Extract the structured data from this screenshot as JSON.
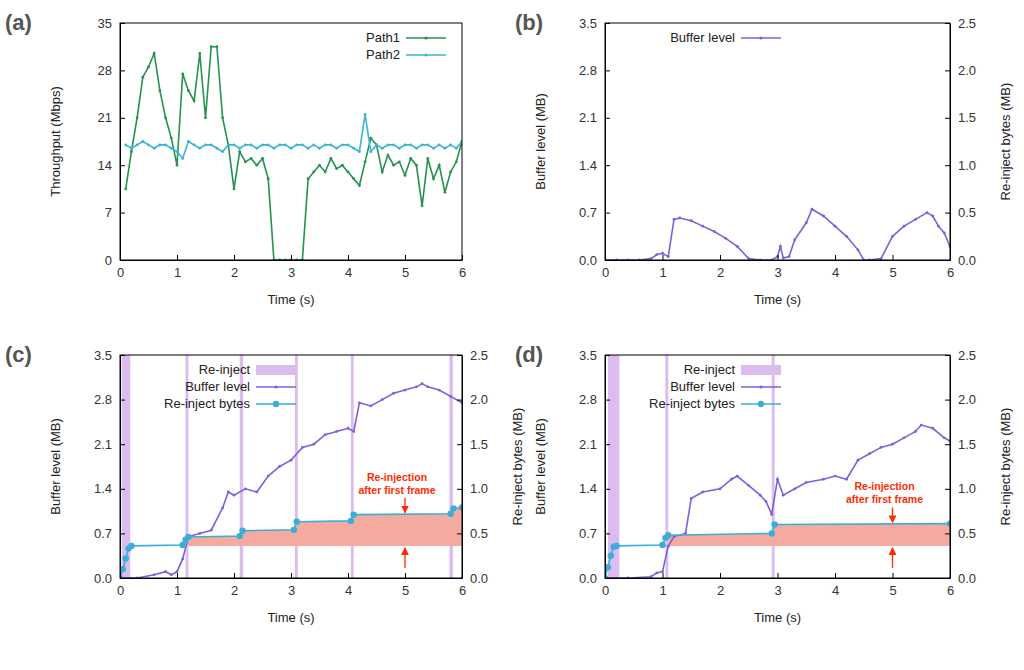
{
  "chart_data": [
    {
      "type": "line",
      "title": "(a)",
      "xlabel": "Time (s)",
      "ylabel": "Throughput (Mbps)",
      "xlim": [
        0,
        6
      ],
      "xticks": [
        0,
        1,
        2,
        3,
        4,
        5,
        6
      ],
      "ylim": [
        0,
        35
      ],
      "yticks": [
        0,
        7,
        14,
        21,
        28,
        35
      ],
      "legend": "upper right",
      "x": [
        0.1,
        0.2,
        0.3,
        0.4,
        0.5,
        0.6,
        0.7,
        0.8,
        0.9,
        1.0,
        1.1,
        1.2,
        1.3,
        1.4,
        1.5,
        1.6,
        1.7,
        1.8,
        1.9,
        2.0,
        2.1,
        2.2,
        2.3,
        2.4,
        2.5,
        2.6,
        2.7,
        2.8,
        2.9,
        3.0,
        3.1,
        3.2,
        3.3,
        3.4,
        3.5,
        3.6,
        3.7,
        3.8,
        3.9,
        4.0,
        4.1,
        4.2,
        4.3,
        4.4,
        4.5,
        4.6,
        4.7,
        4.8,
        4.9,
        5.0,
        5.1,
        5.2,
        5.3,
        5.4,
        5.5,
        5.6,
        5.7,
        5.8,
        5.9,
        6.0
      ],
      "series": [
        {
          "name": "Path1",
          "color": "#25924e",
          "marker": "point",
          "values": [
            10.5,
            16,
            21,
            27,
            28.5,
            30.5,
            25,
            21,
            18,
            14,
            27.5,
            25,
            23.5,
            30.5,
            21,
            31.5,
            31.5,
            21,
            17,
            10.5,
            16,
            14.5,
            15,
            14,
            15,
            12,
            0,
            0,
            0,
            0,
            0,
            0,
            12,
            13,
            14,
            13,
            15,
            13.5,
            14,
            13,
            12,
            11,
            14.5,
            18,
            17,
            13,
            15.5,
            14,
            14.5,
            12.5,
            15,
            14,
            8,
            15,
            12,
            14,
            10,
            13,
            14.5,
            17.5
          ]
        },
        {
          "name": "Path2",
          "color": "#3db3d6",
          "marker": "point",
          "values": [
            17,
            16.5,
            17,
            17.5,
            17,
            16.5,
            17,
            17,
            16.5,
            16,
            15,
            17.5,
            17,
            16.5,
            17,
            17,
            16.5,
            16,
            17,
            17,
            16.5,
            17,
            17,
            16.5,
            17,
            17,
            16.5,
            17,
            17,
            16.5,
            17,
            17,
            16.5,
            17,
            16.5,
            17,
            17,
            16.5,
            17,
            17,
            16.5,
            16,
            21.5,
            16,
            17,
            16.5,
            17,
            17,
            16.5,
            17,
            17,
            16.5,
            17,
            17,
            16.5,
            17,
            16.5,
            17,
            16.5,
            17.5
          ]
        }
      ]
    },
    {
      "type": "line",
      "title": "(b)",
      "xlabel": "Time (s)",
      "ylabel": "Buffer level (MB)",
      "y2label": "Re-inject bytes (MB)",
      "xlim": [
        0,
        6
      ],
      "xticks": [
        0,
        1,
        2,
        3,
        4,
        5,
        6
      ],
      "ylim": [
        0,
        3.5
      ],
      "yticks": [
        {
          "value": 0,
          "label": "0.0"
        },
        0.7,
        1.4,
        2.1,
        2.8,
        3.5
      ],
      "y2lim": [
        0,
        2.5
      ],
      "y2ticks": [
        {
          "value": 0,
          "label": "0.0"
        },
        0.5,
        {
          "value": 1,
          "label": "1.0"
        },
        1.5,
        {
          "value": 2,
          "label": "2.0"
        },
        2.5
      ],
      "legend": "upper left",
      "series": [
        {
          "name": "Buffer level",
          "color": "#7b62dc",
          "marker": "point",
          "x": [
            0,
            0.2,
            0.4,
            0.6,
            0.8,
            0.9,
            1.0,
            1.1,
            1.2,
            1.3,
            1.5,
            1.7,
            1.9,
            2.1,
            2.3,
            2.5,
            2.7,
            2.9,
            3.0,
            3.05,
            3.1,
            3.2,
            3.3,
            3.5,
            3.6,
            3.8,
            4.0,
            4.2,
            4.4,
            4.5,
            4.6,
            4.8,
            5.0,
            5.2,
            5.4,
            5.6,
            5.7,
            5.8,
            5.9,
            6.0
          ],
          "values": [
            0,
            0,
            0,
            0,
            0.02,
            0.08,
            0.1,
            0.05,
            0.6,
            0.62,
            0.58,
            0.5,
            0.42,
            0.32,
            0.2,
            0.02,
            0,
            0,
            0.05,
            0.2,
            0.03,
            0.05,
            0.3,
            0.55,
            0.75,
            0.65,
            0.5,
            0.35,
            0.15,
            0,
            0,
            0.02,
            0.35,
            0.5,
            0.6,
            0.7,
            0.65,
            0.5,
            0.4,
            0.2
          ]
        }
      ]
    },
    {
      "type": "line",
      "title": "(c)",
      "xlabel": "Time (s)",
      "ylabel": "Buffer level (MB)",
      "y2label": "Re-inject bytes (MB)",
      "xlim": [
        0,
        6
      ],
      "xticks": [
        0,
        1,
        2,
        3,
        4,
        5,
        6
      ],
      "ylim": [
        0,
        3.5
      ],
      "yticks": [
        {
          "value": 0,
          "label": "0.0"
        },
        0.7,
        1.4,
        2.1,
        2.8,
        3.5
      ],
      "y2lim": [
        0,
        2.5
      ],
      "y2ticks": [
        {
          "value": 0,
          "label": "0.0"
        },
        0.5,
        {
          "value": 1,
          "label": "1.0"
        },
        1.5,
        {
          "value": 2,
          "label": "2.0"
        },
        2.5
      ],
      "legend": "upper left",
      "series": [
        {
          "name": "Re-inject",
          "type": "span",
          "color": "#dcbcef",
          "start": [
            0.03,
            1.15,
            2.1,
            3.07,
            4.05,
            5.78
          ],
          "end": [
            0.18,
            1.2,
            2.16,
            3.12,
            4.1,
            5.84
          ]
        },
        {
          "name": "Buffer level",
          "color": "#7b62dc",
          "marker": "point",
          "x": [
            0,
            0.3,
            0.6,
            0.8,
            0.9,
            1.0,
            1.1,
            1.2,
            1.4,
            1.6,
            1.8,
            1.9,
            2.0,
            2.2,
            2.4,
            2.6,
            2.8,
            3.0,
            3.2,
            3.4,
            3.6,
            3.8,
            4.0,
            4.1,
            4.2,
            4.4,
            4.6,
            4.8,
            5.0,
            5.2,
            5.3,
            5.4,
            5.6,
            5.8,
            6.0
          ],
          "values": [
            0,
            0,
            0.05,
            0.1,
            0.05,
            0.1,
            0.3,
            0.65,
            0.7,
            0.75,
            1.1,
            1.35,
            1.3,
            1.4,
            1.35,
            1.6,
            1.75,
            1.85,
            2.05,
            2.1,
            2.25,
            2.3,
            2.35,
            2.3,
            2.75,
            2.7,
            2.8,
            2.9,
            2.95,
            3.0,
            3.05,
            3.0,
            2.95,
            2.85,
            2.75
          ]
        },
        {
          "name": "Re-inject bytes",
          "color": "#3aaed8",
          "marker": "circle",
          "axis": "y2",
          "x": [
            0,
            0.05,
            0.1,
            0.15,
            0.2,
            1.1,
            1.15,
            1.2,
            2.1,
            2.15,
            3.05,
            3.1,
            4.05,
            4.1,
            5.8,
            5.85,
            6.0
          ],
          "values": [
            0,
            0.1,
            0.22,
            0.33,
            0.36,
            0.37,
            0.43,
            0.46,
            0.47,
            0.53,
            0.54,
            0.63,
            0.64,
            0.71,
            0.72,
            0.78,
            0.79
          ]
        }
      ],
      "annotations": [
        {
          "text": [
            "Re-injection",
            "after first frame"
          ],
          "x": 5,
          "color": "#ff2a00",
          "band": {
            "from": 1.15,
            "base": 0.36,
            "color": "#f5aaa0"
          }
        }
      ]
    },
    {
      "type": "line",
      "title": "(d)",
      "xlabel": "Time (s)",
      "ylabel": "Buffer level (MB)",
      "y2label": "Re-inject bytes (MB)",
      "xlim": [
        0,
        6
      ],
      "xticks": [
        0,
        1,
        2,
        3,
        4,
        5,
        6
      ],
      "ylim": [
        0,
        3.5
      ],
      "yticks": [
        {
          "value": 0,
          "label": "0.0"
        },
        0.7,
        1.4,
        2.1,
        2.8,
        3.5
      ],
      "y2lim": [
        0,
        2.5
      ],
      "y2ticks": [
        {
          "value": 0,
          "label": "0.0"
        },
        0.5,
        {
          "value": 1,
          "label": "1.0"
        },
        1.5,
        {
          "value": 2,
          "label": "2.0"
        },
        2.5
      ],
      "legend": "upper left",
      "series": [
        {
          "name": "Re-inject",
          "type": "span",
          "color": "#dcbcef",
          "start": [
            0.05,
            1.05,
            2.9
          ],
          "end": [
            0.25,
            1.1,
            2.95
          ]
        },
        {
          "name": "Buffer level",
          "color": "#7b62dc",
          "marker": "point",
          "x": [
            0,
            0.4,
            0.8,
            0.9,
            1.0,
            1.1,
            1.2,
            1.4,
            1.5,
            1.7,
            2.0,
            2.2,
            2.3,
            2.5,
            2.7,
            2.8,
            2.9,
            3.0,
            3.1,
            3.3,
            3.5,
            3.8,
            4.0,
            4.2,
            4.4,
            4.6,
            4.8,
            5.0,
            5.2,
            5.4,
            5.5,
            5.7,
            5.9,
            6.0
          ],
          "values": [
            0,
            0,
            0.02,
            0.08,
            0.1,
            0.5,
            0.65,
            0.7,
            1.25,
            1.35,
            1.4,
            1.55,
            1.6,
            1.45,
            1.3,
            1.2,
            1.0,
            1.55,
            1.3,
            1.4,
            1.5,
            1.55,
            1.6,
            1.55,
            1.85,
            1.95,
            2.05,
            2.1,
            2.2,
            2.3,
            2.4,
            2.35,
            2.2,
            2.15
          ]
        },
        {
          "name": "Re-inject bytes",
          "color": "#3aaed8",
          "marker": "circle",
          "axis": "y2",
          "x": [
            0,
            0.05,
            0.1,
            0.15,
            0.2,
            1.0,
            1.05,
            1.1,
            2.9,
            2.95,
            6.0
          ],
          "values": [
            0,
            0.12,
            0.25,
            0.35,
            0.36,
            0.37,
            0.45,
            0.48,
            0.5,
            0.6,
            0.61
          ]
        }
      ],
      "annotations": [
        {
          "text": [
            "Re-injection",
            "after first frame"
          ],
          "x": 5,
          "color": "#ff2a00",
          "band": {
            "from": 1.1,
            "base": 0.36,
            "color": "#f5aaa0"
          }
        }
      ]
    }
  ]
}
